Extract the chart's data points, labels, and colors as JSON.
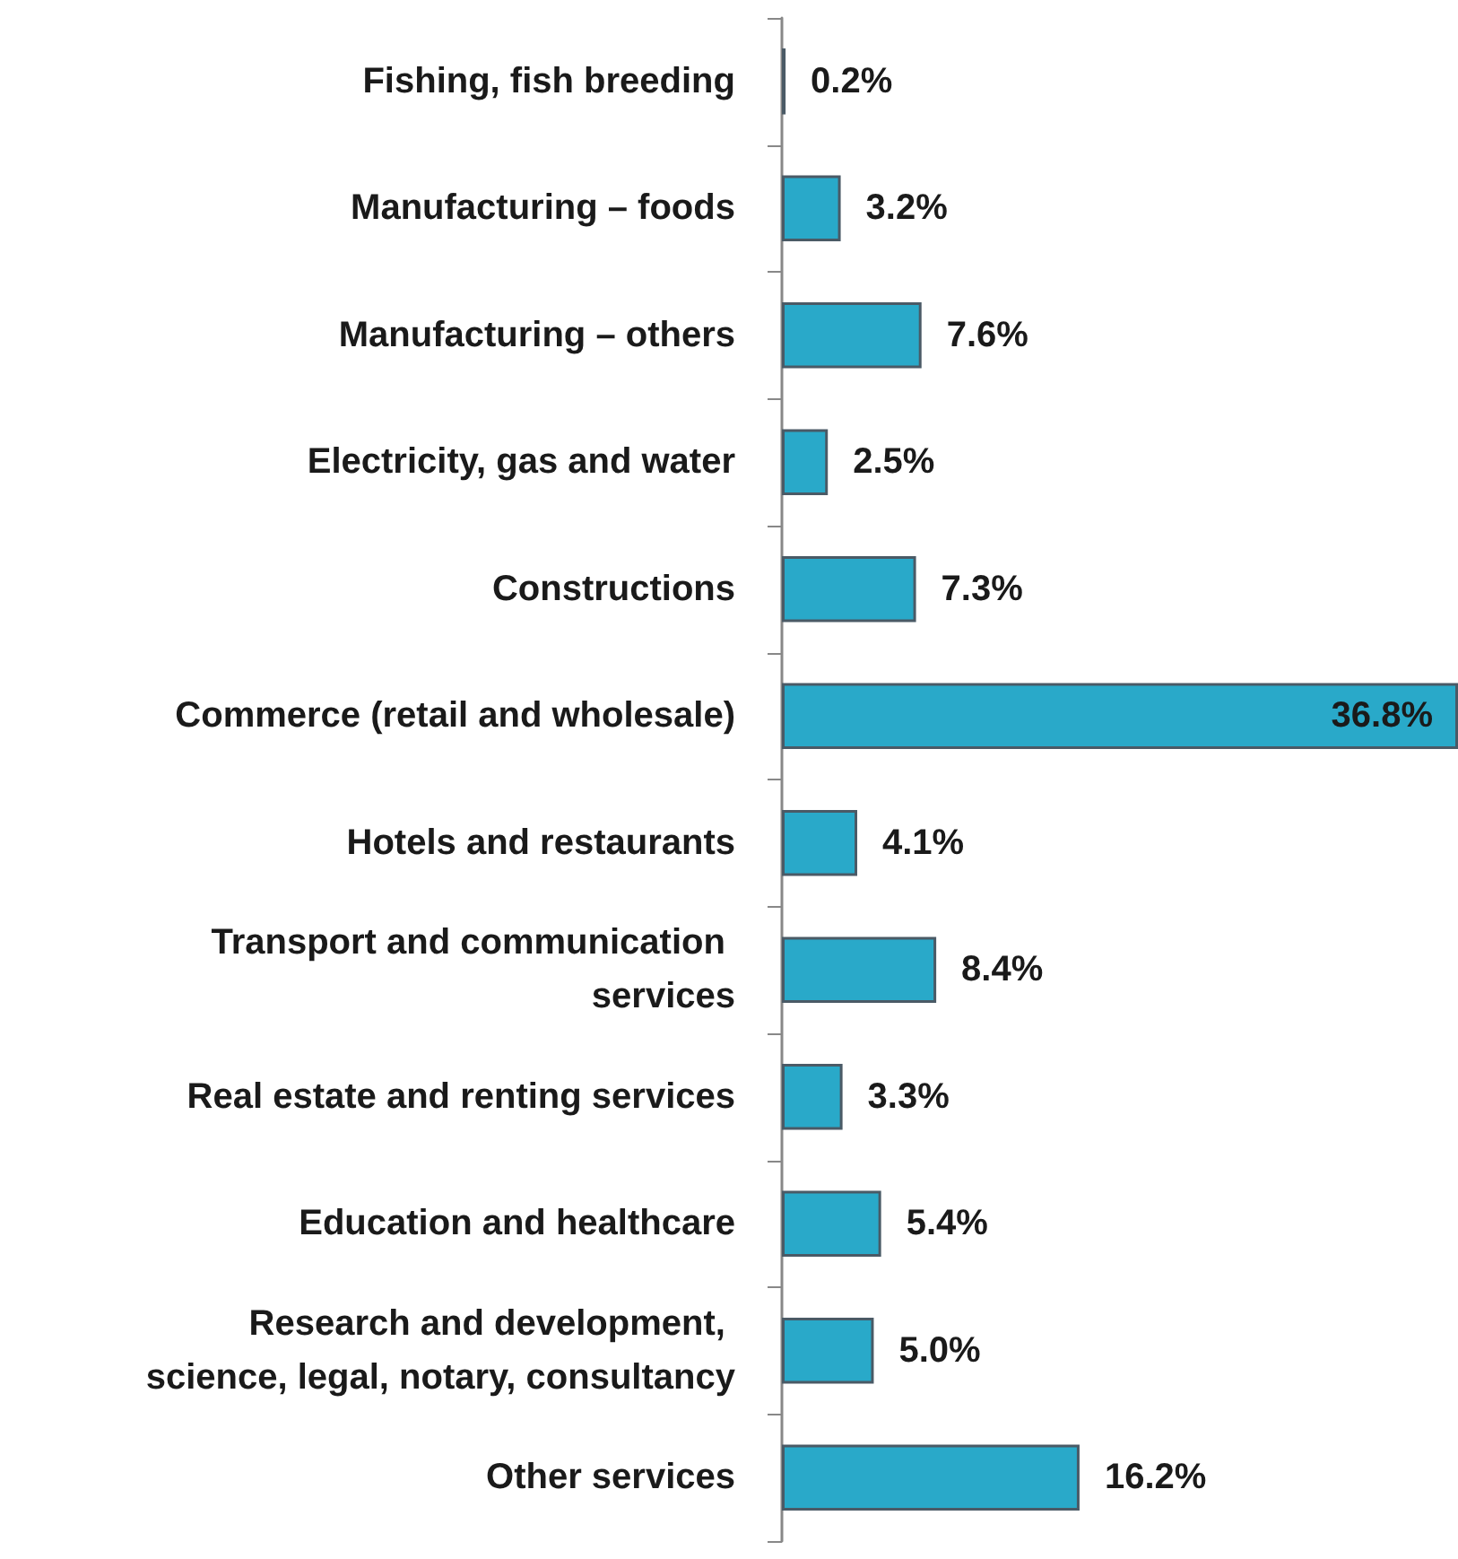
{
  "chart_data": {
    "type": "bar",
    "orientation": "horizontal",
    "categories": [
      "Fishing, fish breeding",
      "Manufacturing – foods",
      "Manufacturing – others",
      "Electricity, gas and water",
      "Constructions",
      "Commerce (retail and wholesale)",
      "Hotels and restaurants",
      "Transport and communication services",
      "Real estate and renting services",
      "Education and healthcare",
      "Research and development, science, legal, notary, consultancy",
      "Other services"
    ],
    "values": [
      0.2,
      3.2,
      7.6,
      2.5,
      7.3,
      36.8,
      4.1,
      8.4,
      3.3,
      5.4,
      5.0,
      16.2
    ],
    "value_labels": [
      "0.2%",
      "3.2%",
      "7.6%",
      "2.5%",
      "7.3%",
      "36.8%",
      "4.1%",
      "8.4%",
      "3.3%",
      "5.4%",
      "5.0%",
      "16.2%"
    ],
    "color": "#29a9c9"
  }
}
